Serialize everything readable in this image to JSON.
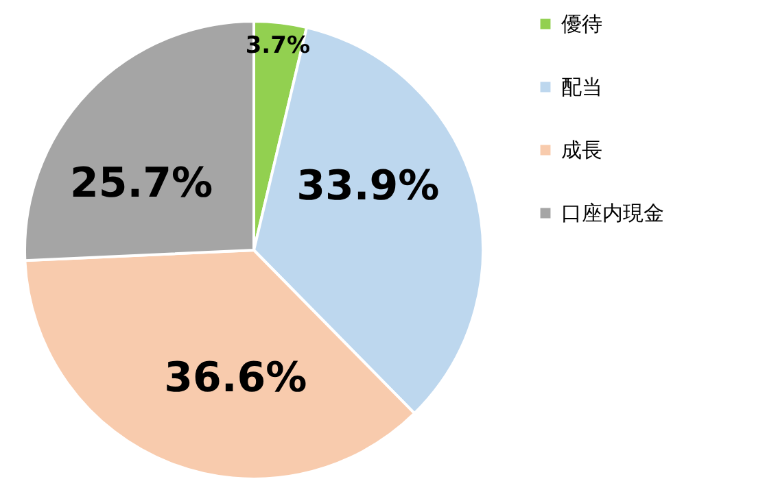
{
  "chart_data": {
    "type": "pie",
    "categories": [
      "優待",
      "配当",
      "成長",
      "口座内現金"
    ],
    "values": [
      3.7,
      33.9,
      36.6,
      25.7
    ],
    "colors": [
      "#92d050",
      "#bdd7ee",
      "#f8cbad",
      "#a5a5a5"
    ],
    "value_labels": [
      "3.7%",
      "33.9%",
      "36.6%",
      "25.7%"
    ],
    "legend": "right"
  }
}
